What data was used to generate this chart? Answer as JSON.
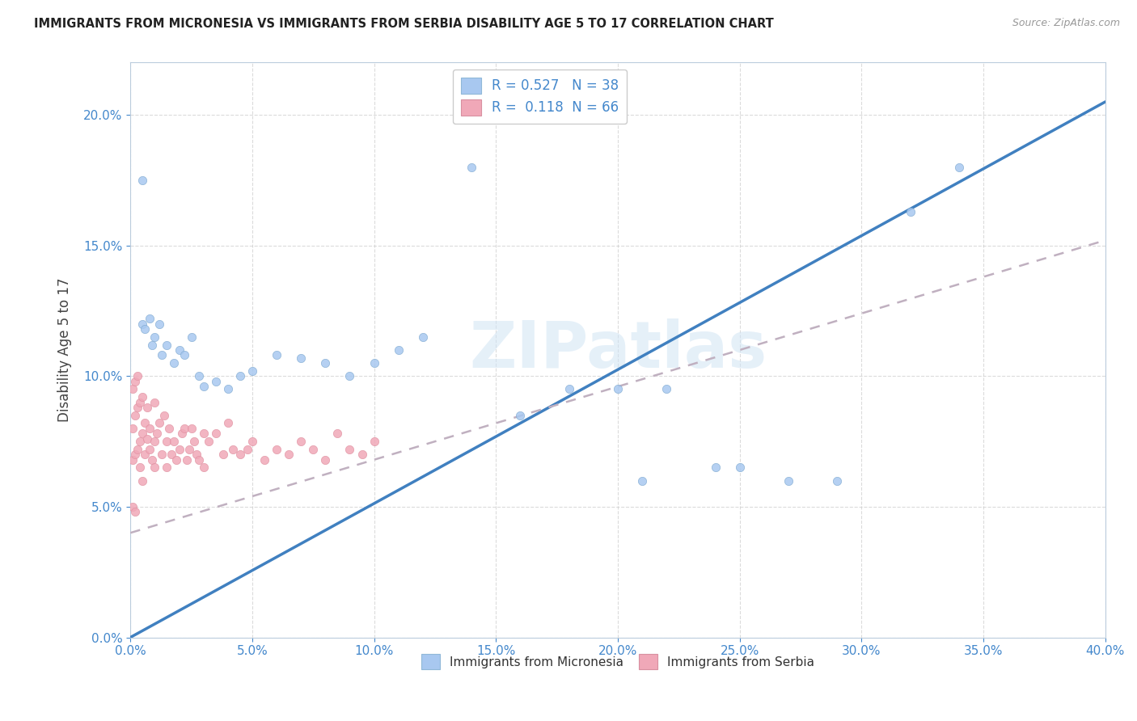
{
  "title": "IMMIGRANTS FROM MICRONESIA VS IMMIGRANTS FROM SERBIA DISABILITY AGE 5 TO 17 CORRELATION CHART",
  "source": "Source: ZipAtlas.com",
  "ylabel": "Disability Age 5 to 17",
  "watermark": "ZIPatlas",
  "legend_r1": "R = 0.527",
  "legend_n1": "N = 38",
  "legend_r2": "R =  0.118",
  "legend_n2": "N = 66",
  "color_micronesia": "#a8c8f0",
  "color_serbia": "#f0a8b8",
  "color_line_micronesia": "#4080c0",
  "color_line_serbia": "#c0b0c0",
  "xlim": [
    0.0,
    0.4
  ],
  "ylim": [
    0.0,
    0.22
  ],
  "xticks": [
    0.0,
    0.05,
    0.1,
    0.15,
    0.2,
    0.25,
    0.3,
    0.35,
    0.4
  ],
  "yticks": [
    0.0,
    0.05,
    0.1,
    0.15,
    0.2
  ],
  "micronesia_line_x": [
    0.0,
    0.4
  ],
  "micronesia_line_y": [
    0.0,
    0.205
  ],
  "serbia_line_x": [
    0.0,
    0.4
  ],
  "serbia_line_y": [
    0.04,
    0.152
  ],
  "micronesia_x": [
    0.005,
    0.006,
    0.008,
    0.009,
    0.01,
    0.012,
    0.013,
    0.015,
    0.018,
    0.02,
    0.022,
    0.025,
    0.028,
    0.03,
    0.035,
    0.04,
    0.045,
    0.05,
    0.06,
    0.07,
    0.08,
    0.09,
    0.1,
    0.11,
    0.12,
    0.14,
    0.16,
    0.18,
    0.2,
    0.21,
    0.22,
    0.24,
    0.25,
    0.27,
    0.29,
    0.32,
    0.34,
    0.005
  ],
  "micronesia_y": [
    0.12,
    0.118,
    0.122,
    0.112,
    0.115,
    0.12,
    0.108,
    0.112,
    0.105,
    0.11,
    0.108,
    0.115,
    0.1,
    0.096,
    0.098,
    0.095,
    0.1,
    0.102,
    0.108,
    0.107,
    0.105,
    0.1,
    0.105,
    0.11,
    0.115,
    0.18,
    0.085,
    0.095,
    0.095,
    0.06,
    0.095,
    0.065,
    0.065,
    0.06,
    0.06,
    0.163,
    0.18,
    0.175
  ],
  "serbia_x": [
    0.001,
    0.001,
    0.001,
    0.002,
    0.002,
    0.002,
    0.003,
    0.003,
    0.003,
    0.004,
    0.004,
    0.004,
    0.005,
    0.005,
    0.005,
    0.006,
    0.006,
    0.007,
    0.007,
    0.008,
    0.008,
    0.009,
    0.01,
    0.01,
    0.01,
    0.011,
    0.012,
    0.013,
    0.014,
    0.015,
    0.015,
    0.016,
    0.017,
    0.018,
    0.019,
    0.02,
    0.021,
    0.022,
    0.023,
    0.024,
    0.025,
    0.026,
    0.027,
    0.028,
    0.03,
    0.03,
    0.032,
    0.035,
    0.038,
    0.04,
    0.042,
    0.045,
    0.048,
    0.05,
    0.055,
    0.06,
    0.065,
    0.07,
    0.075,
    0.08,
    0.085,
    0.09,
    0.095,
    0.1,
    0.001,
    0.002
  ],
  "serbia_y": [
    0.068,
    0.08,
    0.095,
    0.07,
    0.085,
    0.098,
    0.072,
    0.088,
    0.1,
    0.075,
    0.09,
    0.065,
    0.078,
    0.092,
    0.06,
    0.082,
    0.07,
    0.076,
    0.088,
    0.072,
    0.08,
    0.068,
    0.075,
    0.09,
    0.065,
    0.078,
    0.082,
    0.07,
    0.085,
    0.075,
    0.065,
    0.08,
    0.07,
    0.075,
    0.068,
    0.072,
    0.078,
    0.08,
    0.068,
    0.072,
    0.08,
    0.075,
    0.07,
    0.068,
    0.065,
    0.078,
    0.075,
    0.078,
    0.07,
    0.082,
    0.072,
    0.07,
    0.072,
    0.075,
    0.068,
    0.072,
    0.07,
    0.075,
    0.072,
    0.068,
    0.078,
    0.072,
    0.07,
    0.075,
    0.05,
    0.048
  ]
}
